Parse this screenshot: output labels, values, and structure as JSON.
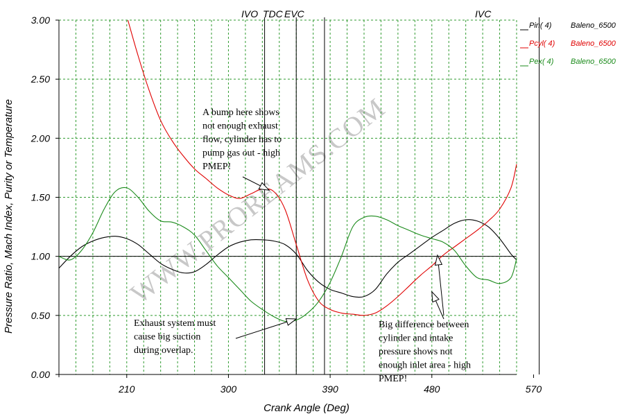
{
  "chart_data": {
    "type": "line",
    "title": "",
    "xlabel": "Crank Angle (Deg)",
    "ylabel": "Pressure Ratio, Mach Index, Purity or Temperature",
    "xlim": [
      150,
      555
    ],
    "ylim": [
      0,
      3
    ],
    "x_ticks": [
      210,
      300,
      390,
      480,
      570
    ],
    "x_tick_labels": [
      "210",
      "300",
      "390",
      "480",
      "570"
    ],
    "y_ticks": [
      0,
      0.5,
      1,
      1.5,
      2,
      2.5,
      3
    ],
    "y_tick_labels": [
      "0.00",
      "0.50",
      "1.00",
      "1.50",
      "2.00",
      "2.50",
      "3.00"
    ],
    "grid": true,
    "legend_position": "right",
    "reference_line": 1.0,
    "events": [
      {
        "label": "IVO",
        "x": 332
      },
      {
        "label": "TDC",
        "x": 360
      },
      {
        "label": "EVC",
        "x": 385
      },
      {
        "label": "IVC",
        "x": 575
      }
    ],
    "series": [
      {
        "name": "Pin( 4)",
        "run": "Baleno_6500",
        "color": "#000000",
        "x": [
          150,
          160,
          170,
          180,
          190,
          200,
          210,
          220,
          230,
          240,
          250,
          260,
          270,
          280,
          290,
          300,
          310,
          320,
          330,
          340,
          350,
          360,
          370,
          380,
          390,
          400,
          410,
          420,
          430,
          440,
          450,
          460,
          470,
          480,
          490,
          500,
          510,
          520,
          530,
          540,
          550,
          555
        ],
        "y": [
          0.9,
          1.0,
          1.08,
          1.13,
          1.16,
          1.17,
          1.15,
          1.1,
          1.02,
          0.94,
          0.89,
          0.86,
          0.87,
          0.93,
          1.01,
          1.08,
          1.12,
          1.14,
          1.14,
          1.13,
          1.1,
          1.02,
          0.88,
          0.78,
          0.72,
          0.69,
          0.66,
          0.66,
          0.72,
          0.85,
          0.95,
          1.02,
          1.09,
          1.16,
          1.22,
          1.28,
          1.31,
          1.3,
          1.25,
          1.15,
          1.02,
          0.97
        ]
      },
      {
        "name": "Pcyl( 4)",
        "run": "Baleno_6500",
        "color": "#e00000",
        "x": [
          211,
          220,
          230,
          240,
          250,
          260,
          270,
          280,
          290,
          300,
          310,
          320,
          330,
          340,
          350,
          360,
          370,
          380,
          390,
          400,
          410,
          420,
          430,
          440,
          450,
          460,
          470,
          480,
          490,
          500,
          510,
          520,
          530,
          540,
          550,
          555
        ],
        "y": [
          3.0,
          2.7,
          2.4,
          2.15,
          1.98,
          1.85,
          1.74,
          1.66,
          1.58,
          1.52,
          1.49,
          1.53,
          1.57,
          1.55,
          1.4,
          1.1,
          0.8,
          0.62,
          0.55,
          0.52,
          0.51,
          0.5,
          0.52,
          0.58,
          0.66,
          0.75,
          0.84,
          0.92,
          1.01,
          1.08,
          1.15,
          1.22,
          1.3,
          1.4,
          1.58,
          1.78
        ]
      },
      {
        "name": "Pex( 4)",
        "run": "Baleno_6500",
        "color": "#1a8a1a",
        "x": [
          150,
          160,
          170,
          180,
          190,
          200,
          210,
          220,
          230,
          240,
          250,
          260,
          270,
          280,
          290,
          300,
          310,
          320,
          330,
          340,
          350,
          360,
          370,
          380,
          390,
          400,
          410,
          420,
          430,
          440,
          450,
          460,
          470,
          480,
          490,
          500,
          510,
          520,
          530,
          540,
          550,
          555
        ],
        "y": [
          1.0,
          0.97,
          1.05,
          1.2,
          1.4,
          1.55,
          1.58,
          1.5,
          1.38,
          1.3,
          1.29,
          1.25,
          1.18,
          1.05,
          0.92,
          0.82,
          0.72,
          0.62,
          0.55,
          0.49,
          0.45,
          0.46,
          0.52,
          0.62,
          0.78,
          1.0,
          1.25,
          1.33,
          1.34,
          1.31,
          1.26,
          1.22,
          1.18,
          1.15,
          1.12,
          1.05,
          0.92,
          0.82,
          0.8,
          0.77,
          0.82,
          0.98
        ]
      }
    ],
    "annotations": [
      {
        "text": "A bump here shows\nnot enough exhaust\nflow, cylinder has to\npump gas out - high\nPMEP!",
        "points_to": [
          [
            336,
            1.56
          ]
        ]
      },
      {
        "text": "Exhaust system must\ncause big suction\nduring overlap.",
        "points_to": [
          [
            360,
            0.47
          ]
        ]
      },
      {
        "text": "Big difference between\ncylinder and intake\npressure shows not\nenough inlet area - high\nPMEP!",
        "points_to": [
          [
            485,
            1.01
          ],
          [
            480,
            0.7
          ]
        ]
      }
    ],
    "watermark": "WWW.PROREAMS.COM"
  }
}
